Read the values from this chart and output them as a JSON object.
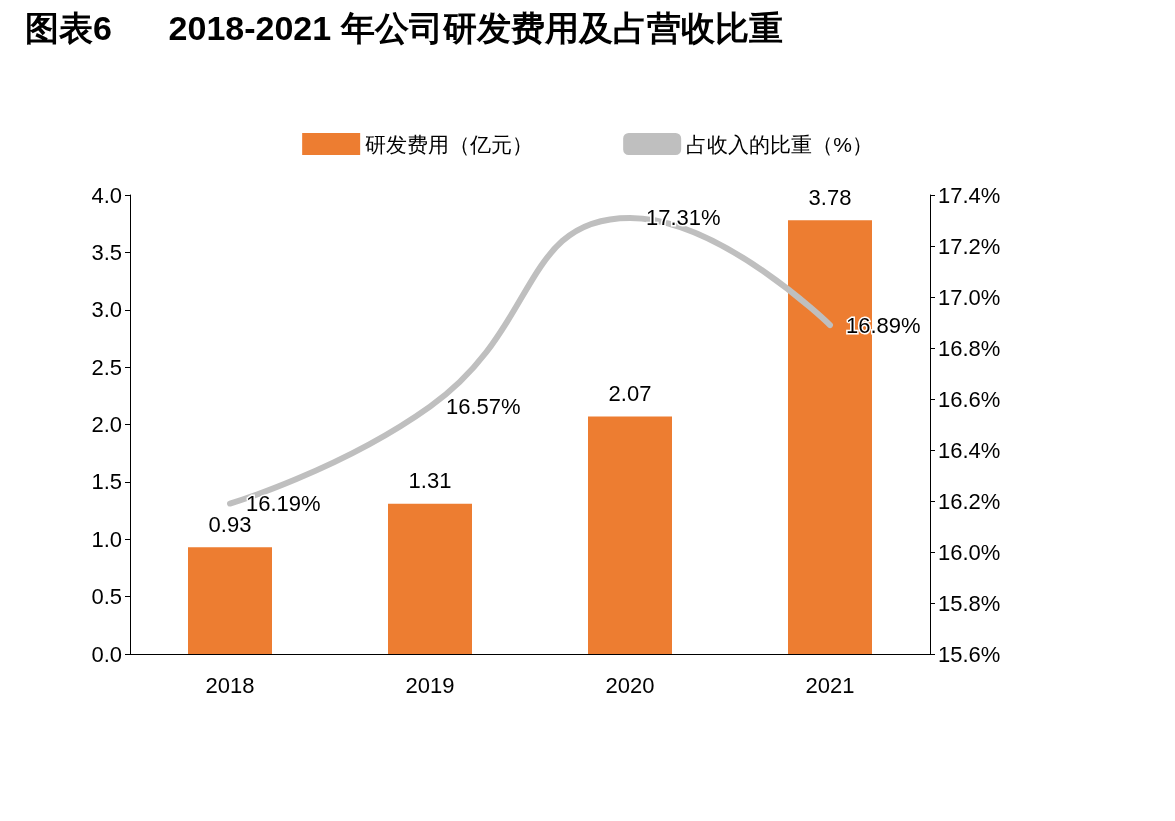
{
  "chart_data": {
    "type": "bar",
    "title": "图表6      2018-2021 年公司研发费用及占营收比重",
    "categories": [
      "2018",
      "2019",
      "2020",
      "2021"
    ],
    "series": [
      {
        "name": "研发费用（亿元）",
        "color": "#ed7d31",
        "values": [
          0.93,
          1.31,
          2.07,
          3.78
        ],
        "value_labels": [
          "0.93",
          "1.31",
          "2.07",
          "3.78"
        ]
      },
      {
        "name": "占收入的比重（%）",
        "type": "line",
        "axis": "y2",
        "color": "#bfbfbf",
        "values": [
          16.19,
          16.57,
          17.31,
          16.89
        ],
        "value_labels": [
          "16.19%",
          "16.57%",
          "17.31%",
          "16.89%"
        ]
      }
    ],
    "ylim": [
      0,
      4
    ],
    "yticks": [
      {
        "value": 0,
        "label": "0.0"
      },
      {
        "value": 0.5,
        "label": "0.5"
      },
      {
        "value": 1,
        "label": "1.0"
      },
      {
        "value": 1.5,
        "label": "1.5"
      },
      {
        "value": 2,
        "label": "2.0"
      },
      {
        "value": 2.5,
        "label": "2.5"
      },
      {
        "value": 3,
        "label": "3.0"
      },
      {
        "value": 3.5,
        "label": "3.5"
      },
      {
        "value": 4,
        "label": "4.0"
      }
    ],
    "y2lim": [
      15.6,
      17.4
    ],
    "y2ticks": [
      {
        "value": 15.6,
        "label": "15.6%"
      },
      {
        "value": 15.8,
        "label": "15.8%"
      },
      {
        "value": 16.0,
        "label": "16.0%"
      },
      {
        "value": 16.2,
        "label": "16.2%"
      },
      {
        "value": 16.4,
        "label": "16.4%"
      },
      {
        "value": 16.6,
        "label": "16.6%"
      },
      {
        "value": 16.8,
        "label": "16.8%"
      },
      {
        "value": 17.0,
        "label": "17.0%"
      },
      {
        "value": 17.2,
        "label": "17.2%"
      },
      {
        "value": 17.4,
        "label": "17.4%"
      }
    ],
    "legend": "top",
    "grid": false,
    "marker": "none"
  }
}
